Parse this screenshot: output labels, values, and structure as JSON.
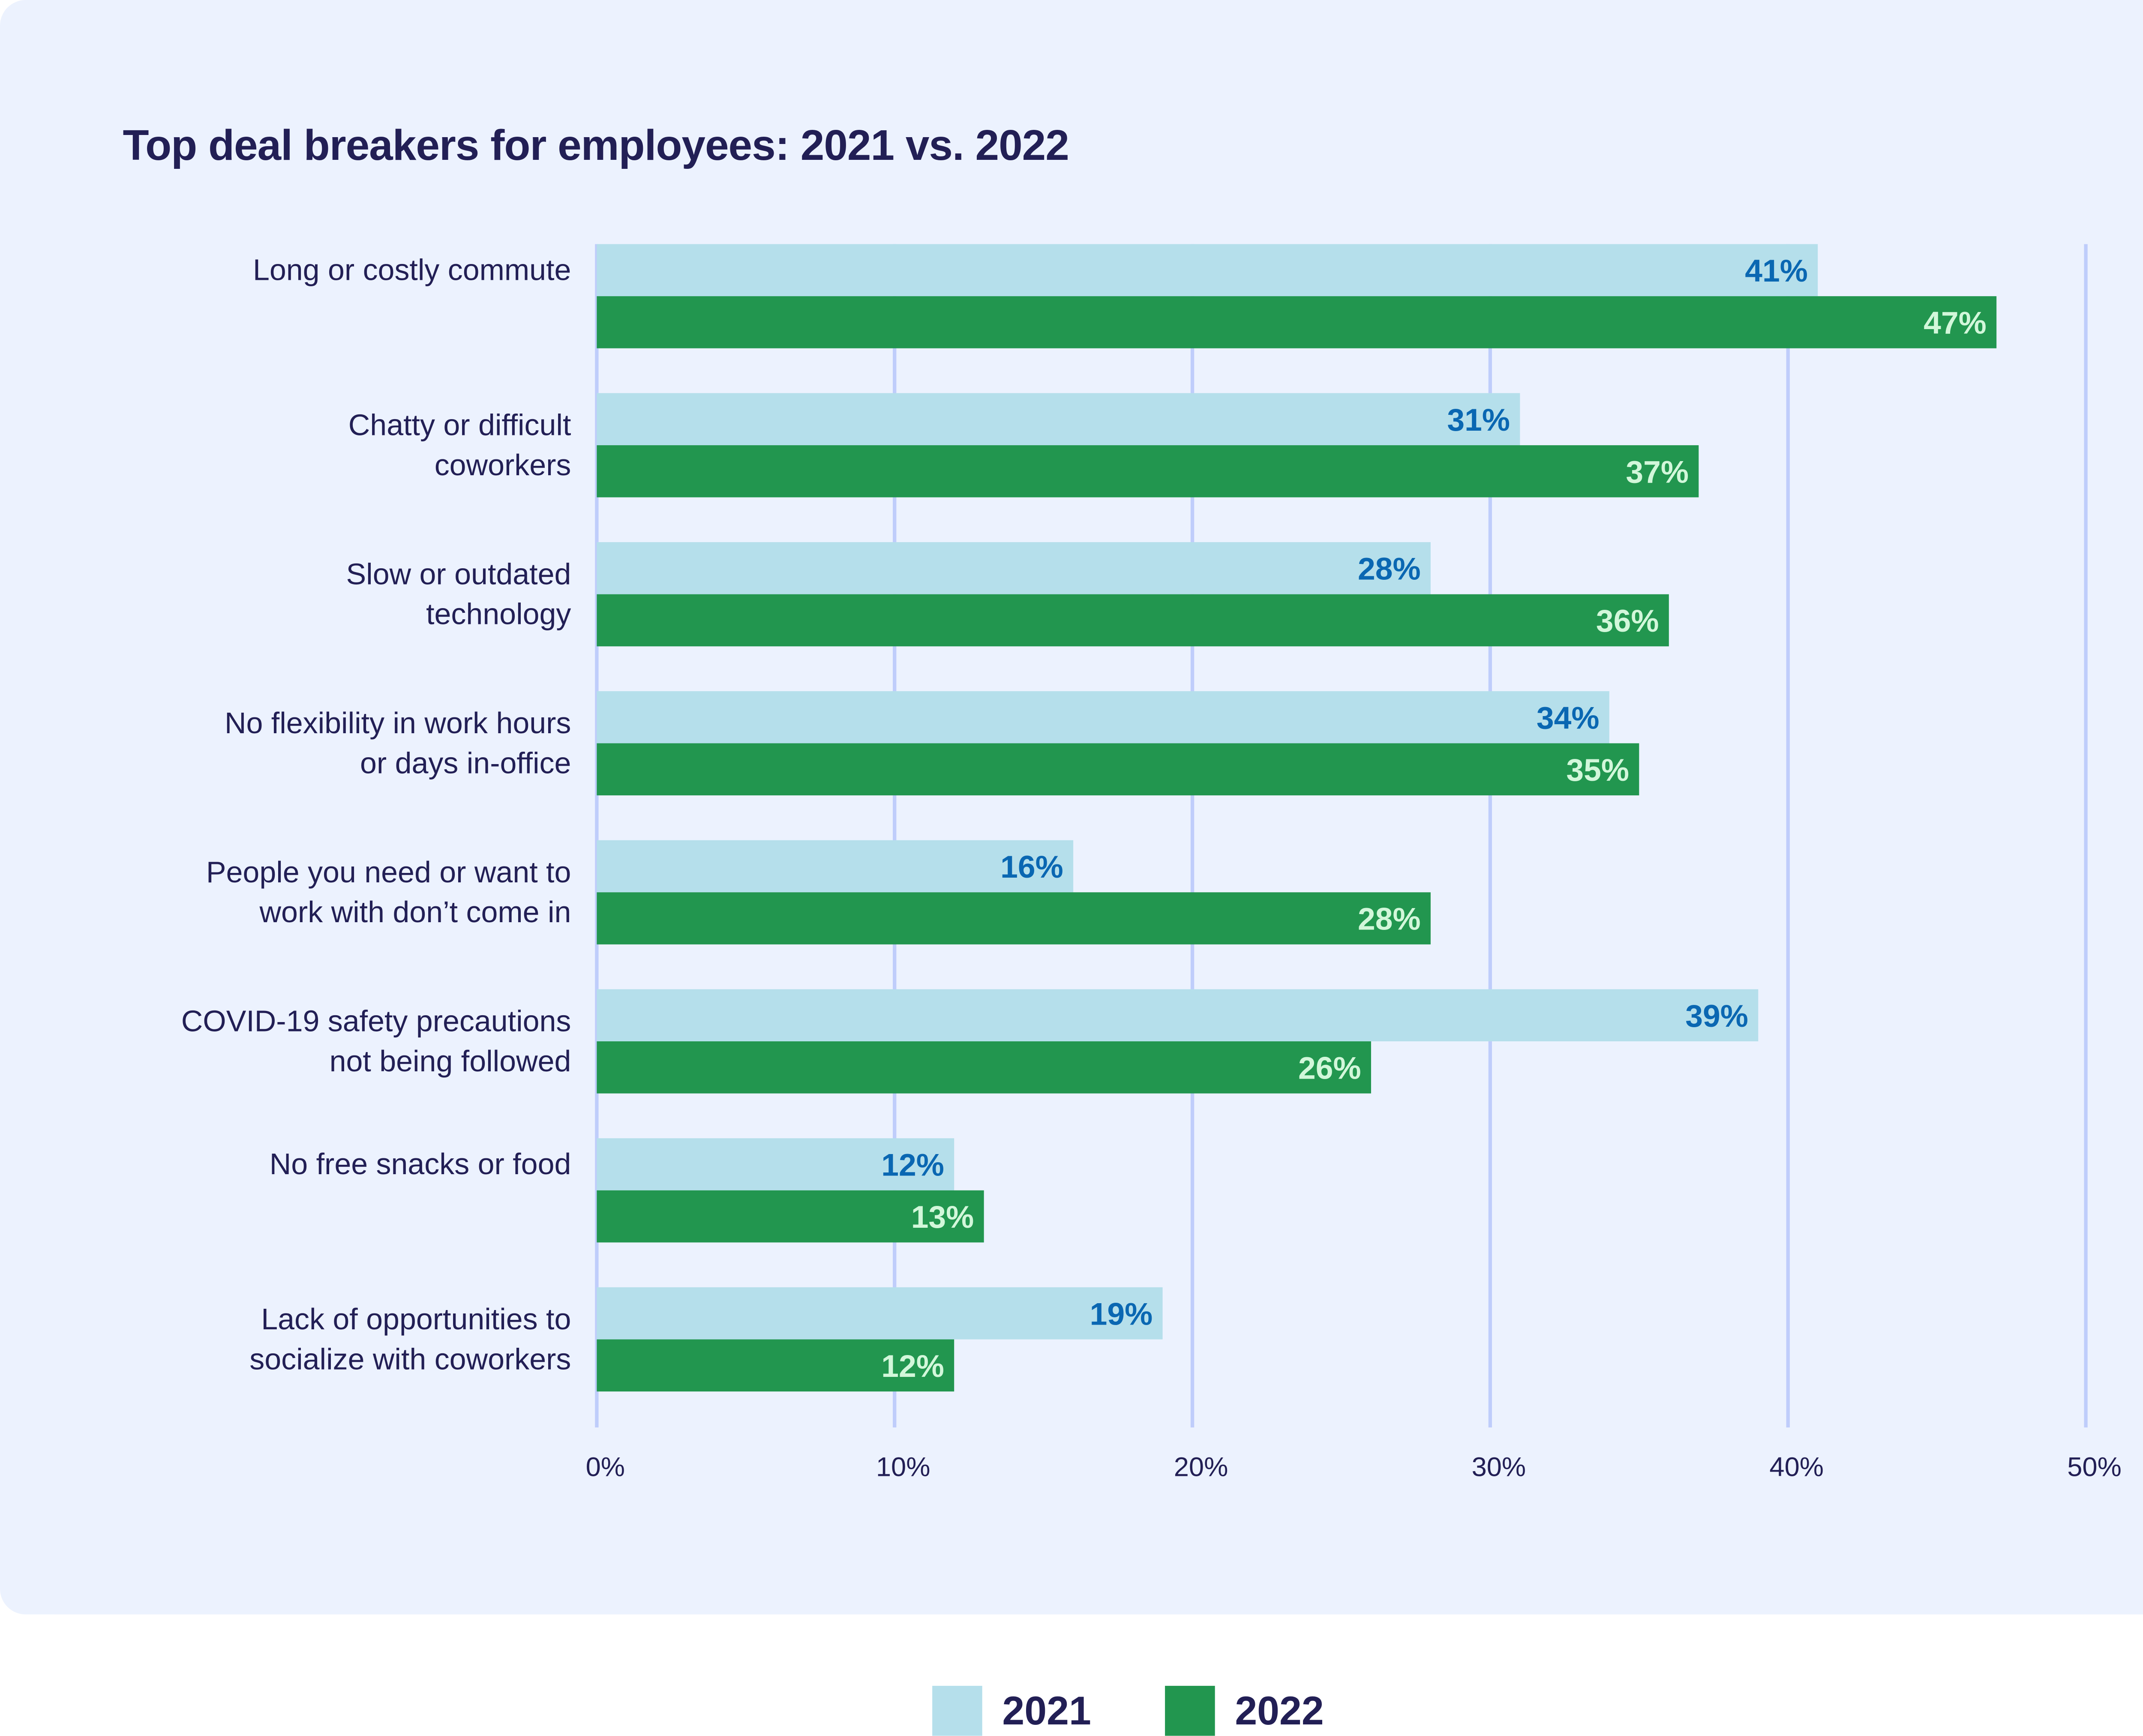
{
  "chart_data": {
    "type": "bar",
    "orientation": "horizontal",
    "title": "Top deal breakers for employees: 2021 vs. 2022",
    "xlabel": "",
    "ylabel": "",
    "xlim": [
      0,
      50
    ],
    "x_ticks": [
      0,
      10,
      20,
      30,
      40,
      50
    ],
    "x_tick_labels": [
      "0%",
      "10%",
      "20%",
      "30%",
      "40%",
      "50%"
    ],
    "grid": true,
    "legend_position": "bottom-center",
    "categories": [
      [
        "Long or costly commute"
      ],
      [
        "Chatty or difficult",
        "coworkers"
      ],
      [
        "Slow or outdated",
        "technology"
      ],
      [
        "No flexibility in work hours",
        "or days in-office"
      ],
      [
        "People you need or want to",
        "work with don’t come in"
      ],
      [
        "COVID-19 safety precautions",
        "not being followed"
      ],
      [
        "No free snacks or food"
      ],
      [
        "Lack of opportunities to",
        "socialize with coworkers"
      ]
    ],
    "series": [
      {
        "name": "2021",
        "color": "#b5dfeb",
        "label_color": "#0a67b2",
        "values": [
          41,
          31,
          28,
          34,
          16,
          39,
          12,
          19
        ],
        "labels": [
          "41%",
          "31%",
          "28%",
          "34%",
          "16%",
          "39%",
          "12%",
          "19%"
        ]
      },
      {
        "name": "2022",
        "color": "#22964f",
        "label_color": "#d2f7da",
        "values": [
          47,
          37,
          36,
          35,
          28,
          26,
          13,
          12
        ],
        "labels": [
          "47%",
          "37%",
          "36%",
          "35%",
          "28%",
          "26%",
          "13%",
          "12%"
        ]
      }
    ]
  },
  "legend": {
    "items": [
      {
        "label": "2021",
        "color": "#b5dfeb"
      },
      {
        "label": "2022",
        "color": "#22964f"
      }
    ]
  }
}
